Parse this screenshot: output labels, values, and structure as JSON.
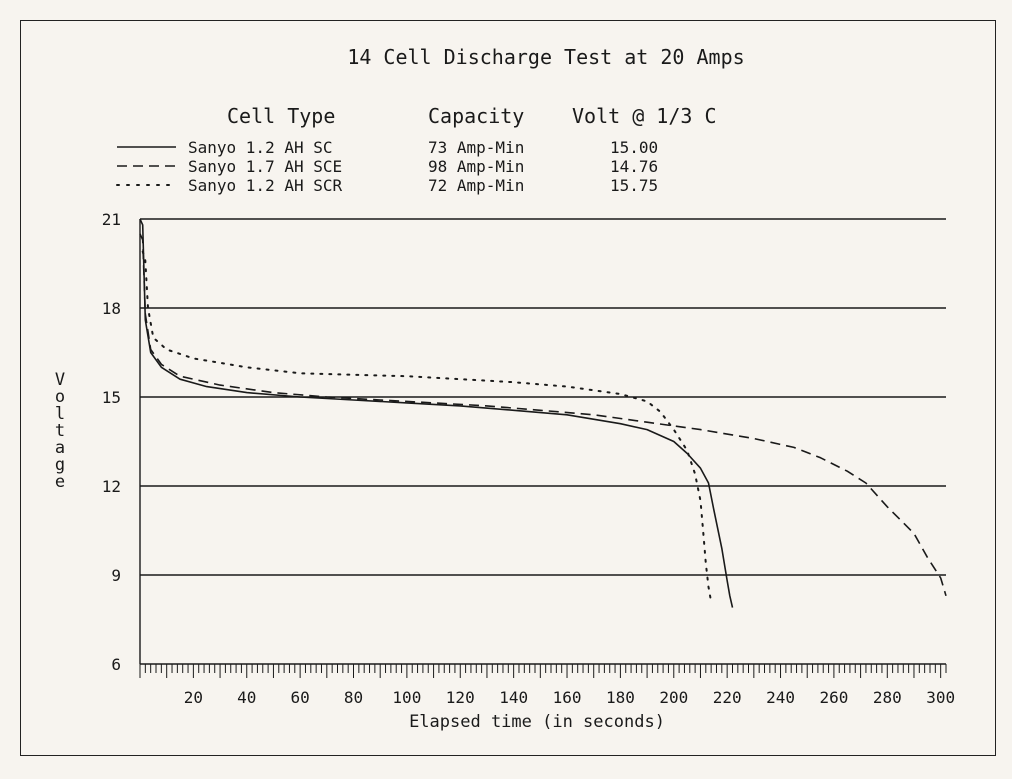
{
  "chart_data": {
    "type": "line",
    "title": "14 Cell Discharge Test at 20 Amps",
    "xlabel": "Elapsed time (in seconds)",
    "ylabel": "Voltage",
    "xlim": [
      0,
      300
    ],
    "ylim": [
      6,
      21
    ],
    "x_ticks": [
      "20",
      "40",
      "60",
      "80",
      "100",
      "120",
      "140",
      "160",
      "180",
      "200",
      "220",
      "240",
      "260",
      "280",
      "300"
    ],
    "y_ticks": [
      "6",
      "9",
      "12",
      "15",
      "18",
      "21"
    ],
    "grid": "horizontal",
    "legend": {
      "placement": "top",
      "headers": {
        "type": "Cell Type",
        "capacity": "Capacity",
        "volt": "Volt @ 1/3 C"
      },
      "entries": [
        {
          "name": "Sanyo 1.2 AH SC",
          "capacity": "73 Amp-Min",
          "volt": "15.00",
          "style": "solid"
        },
        {
          "name": "Sanyo 1.7 AH SCE",
          "capacity": "98 Amp-Min",
          "volt": "14.76",
          "style": "dashed"
        },
        {
          "name": "Sanyo 1.2 AH SCR",
          "capacity": "72 Amp-Min",
          "volt": "15.75",
          "style": "dotted"
        }
      ]
    },
    "series": [
      {
        "name": "Sanyo 1.2 AH SC",
        "style": "solid",
        "points": [
          [
            0,
            21.0
          ],
          [
            1,
            20.8
          ],
          [
            2,
            17.6
          ],
          [
            4,
            16.5
          ],
          [
            8,
            16.0
          ],
          [
            15,
            15.6
          ],
          [
            25,
            15.35
          ],
          [
            40,
            15.15
          ],
          [
            60,
            15.0
          ],
          [
            80,
            14.9
          ],
          [
            100,
            14.8
          ],
          [
            120,
            14.7
          ],
          [
            140,
            14.55
          ],
          [
            160,
            14.4
          ],
          [
            180,
            14.1
          ],
          [
            190,
            13.9
          ],
          [
            200,
            13.5
          ],
          [
            205,
            13.1
          ],
          [
            210,
            12.6
          ],
          [
            213,
            12.1
          ],
          [
            215,
            11.2
          ],
          [
            218,
            9.9
          ],
          [
            220,
            8.8
          ],
          [
            221,
            8.3
          ],
          [
            222,
            7.9
          ]
        ]
      },
      {
        "name": "Sanyo 1.7 AH SCE",
        "style": "dashed",
        "points": [
          [
            0,
            20.5
          ],
          [
            1,
            20.3
          ],
          [
            2,
            17.8
          ],
          [
            4,
            16.6
          ],
          [
            8,
            16.1
          ],
          [
            15,
            15.7
          ],
          [
            30,
            15.4
          ],
          [
            50,
            15.15
          ],
          [
            70,
            15.0
          ],
          [
            90,
            14.9
          ],
          [
            110,
            14.8
          ],
          [
            130,
            14.7
          ],
          [
            150,
            14.55
          ],
          [
            170,
            14.4
          ],
          [
            190,
            14.15
          ],
          [
            210,
            13.9
          ],
          [
            230,
            13.6
          ],
          [
            245,
            13.3
          ],
          [
            255,
            12.95
          ],
          [
            265,
            12.5
          ],
          [
            272,
            12.1
          ],
          [
            280,
            11.3
          ],
          [
            290,
            10.4
          ],
          [
            295,
            9.6
          ],
          [
            300,
            8.9
          ],
          [
            302,
            8.3
          ]
        ]
      },
      {
        "name": "Sanyo 1.2 AH SCR",
        "style": "dotted",
        "points": [
          [
            1,
            19.9
          ],
          [
            2,
            19.6
          ],
          [
            3,
            18.0
          ],
          [
            5,
            17.0
          ],
          [
            10,
            16.6
          ],
          [
            20,
            16.3
          ],
          [
            40,
            16.0
          ],
          [
            60,
            15.8
          ],
          [
            80,
            15.75
          ],
          [
            100,
            15.7
          ],
          [
            120,
            15.6
          ],
          [
            140,
            15.5
          ],
          [
            160,
            15.35
          ],
          [
            180,
            15.1
          ],
          [
            190,
            14.85
          ],
          [
            195,
            14.5
          ],
          [
            200,
            13.9
          ],
          [
            205,
            13.2
          ],
          [
            208,
            12.4
          ],
          [
            210,
            11.5
          ],
          [
            211,
            10.5
          ],
          [
            212,
            9.4
          ],
          [
            213,
            8.6
          ],
          [
            214,
            8.1
          ]
        ]
      }
    ]
  }
}
